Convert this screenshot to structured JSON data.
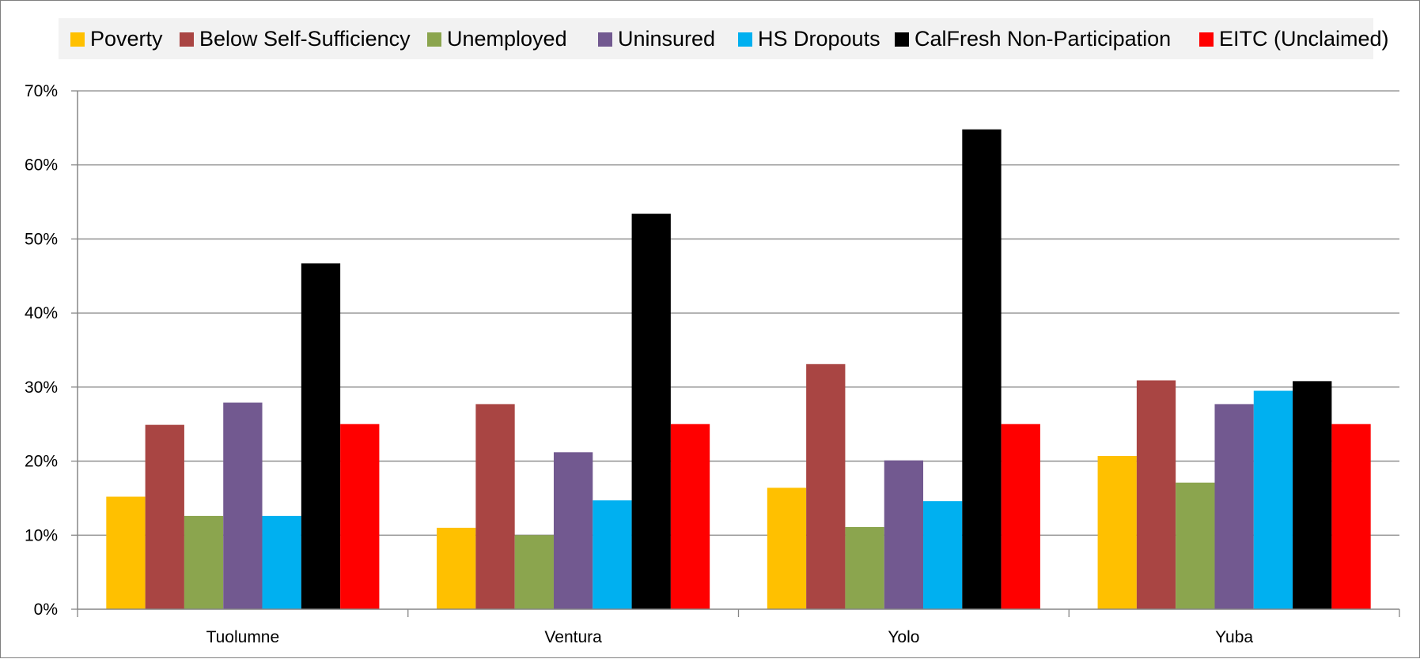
{
  "chart_data": {
    "type": "bar",
    "title": "",
    "xlabel": "",
    "ylabel": "",
    "categories": [
      "Tuolumne",
      "Ventura",
      "Yolo",
      "Yuba"
    ],
    "ylim": [
      0,
      70
    ],
    "yticks": [
      0,
      10,
      20,
      30,
      40,
      50,
      60,
      70
    ],
    "ytick_labels": [
      "0%",
      "10%",
      "20%",
      "30%",
      "40%",
      "50%",
      "60%",
      "70%"
    ],
    "grid": true,
    "legend_position": "top",
    "series": [
      {
        "name": "Poverty",
        "color": "#FFC000",
        "values": [
          15.2,
          11.0,
          16.4,
          20.7
        ]
      },
      {
        "name": "Below Self-Sufficiency",
        "color": "#A94543",
        "values": [
          24.9,
          27.7,
          33.1,
          30.9
        ]
      },
      {
        "name": "Unemployed",
        "color": "#8BA54E",
        "values": [
          12.6,
          10.0,
          11.1,
          17.1
        ]
      },
      {
        "name": "Uninsured",
        "color": "#725990",
        "values": [
          27.9,
          21.2,
          20.1,
          27.7
        ]
      },
      {
        "name": "HS Dropouts",
        "color": "#00B0F0",
        "values": [
          12.6,
          14.7,
          14.6,
          29.5
        ]
      },
      {
        "name": "CalFresh Non-Participation",
        "color": "#000000",
        "values": [
          46.7,
          53.4,
          64.8,
          30.8
        ]
      },
      {
        "name": "EITC (Unclaimed)",
        "color": "#FF0000",
        "values": [
          25.0,
          25.0,
          25.0,
          25.0
        ]
      }
    ]
  }
}
